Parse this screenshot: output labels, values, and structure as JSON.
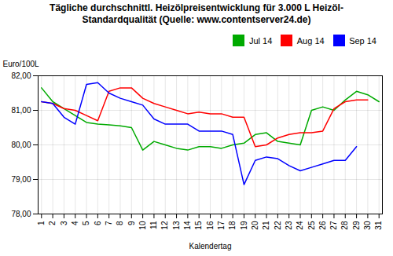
{
  "chart_data": {
    "type": "line",
    "title": "Tägliche durchschnittl. Heizölpreisentwicklung für 3.000 L Heizöl-\nStandardqualität (Quelle: www.contentserver24.de)",
    "ylabel": "Euro/100L",
    "xlabel": "Kalendertag",
    "x": [
      1,
      2,
      3,
      4,
      5,
      6,
      7,
      8,
      9,
      10,
      11,
      12,
      13,
      14,
      15,
      16,
      17,
      18,
      19,
      20,
      21,
      22,
      23,
      24,
      25,
      26,
      27,
      28,
      29,
      30,
      31
    ],
    "xlim": [
      0.7,
      31.3
    ],
    "xticks": [
      1,
      2,
      3,
      4,
      5,
      6,
      7,
      8,
      9,
      10,
      11,
      12,
      13,
      14,
      15,
      16,
      17,
      18,
      19,
      20,
      21,
      22,
      23,
      24,
      25,
      26,
      27,
      28,
      29,
      30,
      31
    ],
    "ylim": [
      78.0,
      82.0
    ],
    "yticks": [
      {
        "value": 78.0,
        "label": "78,00"
      },
      {
        "value": 79.0,
        "label": "79,00"
      },
      {
        "value": 80.0,
        "label": "80,00"
      },
      {
        "value": 81.0,
        "label": "81,00"
      },
      {
        "value": 82.0,
        "label": "82,00"
      }
    ],
    "grid": true,
    "legend": "upper right",
    "series": [
      {
        "name": "Jul 14",
        "color": "#00AA00",
        "values": [
          81.65,
          81.25,
          81.05,
          80.85,
          80.65,
          80.6,
          80.58,
          80.55,
          80.5,
          79.85,
          80.1,
          80.0,
          79.9,
          79.85,
          79.95,
          79.95,
          79.9,
          80.0,
          80.05,
          80.3,
          80.35,
          80.1,
          80.05,
          80.0,
          81.0,
          81.1,
          81.0,
          81.3,
          81.55,
          81.45,
          81.25
        ]
      },
      {
        "name": "Aug 14",
        "color": "#FF0000",
        "values": [
          81.25,
          81.2,
          81.05,
          81.0,
          80.85,
          80.7,
          81.55,
          81.65,
          81.65,
          81.35,
          81.2,
          81.1,
          81.0,
          80.9,
          80.95,
          80.9,
          80.9,
          80.8,
          80.8,
          79.95,
          80.0,
          80.2,
          80.3,
          80.35,
          80.35,
          80.4,
          81.05,
          81.25,
          81.3,
          81.3,
          null
        ]
      },
      {
        "name": "Sep 14",
        "color": "#0000FF",
        "values": [
          81.25,
          81.2,
          80.8,
          80.6,
          81.75,
          81.8,
          81.5,
          81.35,
          81.25,
          81.15,
          80.75,
          80.6,
          80.6,
          80.6,
          80.4,
          80.4,
          80.4,
          80.3,
          78.85,
          79.55,
          79.65,
          79.6,
          79.4,
          79.25,
          79.35,
          79.45,
          79.55,
          79.55,
          79.95,
          null,
          null
        ]
      }
    ]
  }
}
